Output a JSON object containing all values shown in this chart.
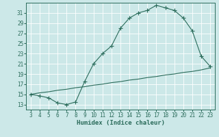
{
  "title": "",
  "xlabel": "Humidex (Indice chaleur)",
  "ylabel": "",
  "background_color": "#cce8e8",
  "grid_color": "#ffffff",
  "line_color": "#2a6b5a",
  "marker_color": "#2a6b5a",
  "x_curve1": [
    3,
    4,
    5,
    6,
    7,
    8,
    9,
    10,
    11,
    12,
    13,
    14,
    15,
    16,
    17,
    18,
    19,
    20,
    21,
    22,
    23
  ],
  "y_curve1": [
    15.0,
    14.7,
    14.3,
    13.3,
    13.0,
    13.5,
    17.5,
    21.0,
    23.0,
    24.5,
    28.0,
    30.0,
    31.0,
    31.5,
    32.5,
    32.0,
    31.5,
    30.0,
    27.5,
    22.5,
    20.5
  ],
  "x_curve2": [
    3,
    4,
    5,
    6,
    7,
    8,
    9,
    10,
    11,
    12,
    13,
    14,
    15,
    16,
    17,
    18,
    19,
    20,
    21,
    22,
    23
  ],
  "y_curve2": [
    15.0,
    15.3,
    15.5,
    15.8,
    16.0,
    16.3,
    16.5,
    16.8,
    17.0,
    17.3,
    17.5,
    17.8,
    18.0,
    18.3,
    18.5,
    18.8,
    19.0,
    19.3,
    19.5,
    19.8,
    20.2
  ],
  "xlim": [
    2.5,
    23.5
  ],
  "ylim": [
    12.0,
    33.0
  ],
  "yticks": [
    13,
    15,
    17,
    19,
    21,
    23,
    25,
    27,
    29,
    31
  ],
  "xticks": [
    3,
    4,
    5,
    6,
    7,
    8,
    9,
    10,
    11,
    12,
    13,
    14,
    15,
    16,
    17,
    18,
    19,
    20,
    21,
    22,
    23
  ],
  "xlabel_fontsize": 6.5,
  "tick_fontsize": 5.5,
  "marker_size": 2.5,
  "linewidth": 0.8
}
